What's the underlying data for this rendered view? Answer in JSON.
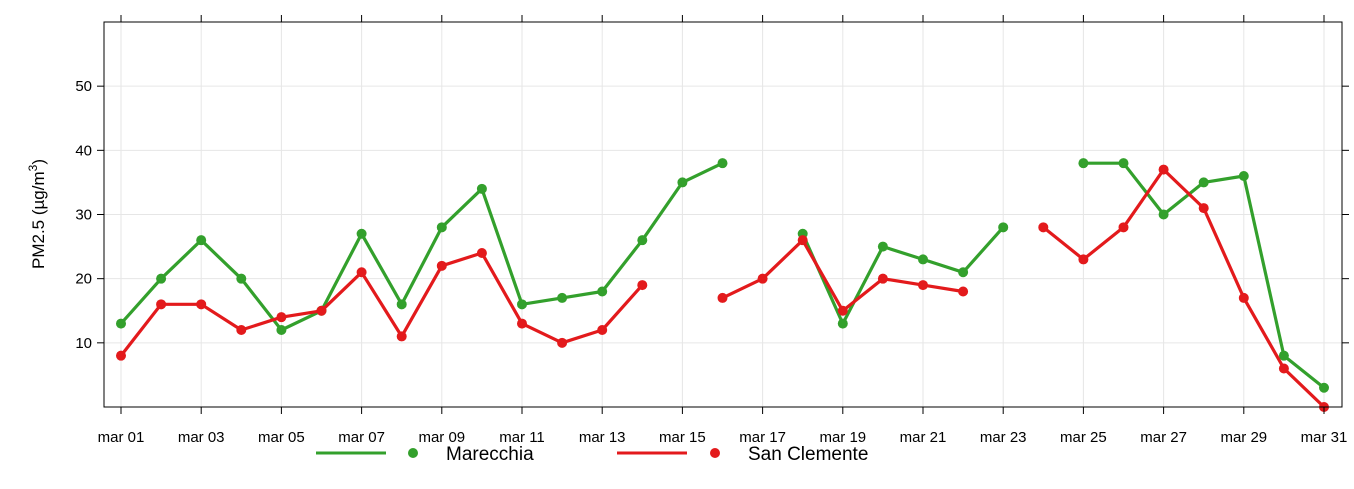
{
  "chart_data": {
    "type": "line",
    "title": "",
    "xlabel": "",
    "ylabel": {
      "text": "PM2.5 (µg/m",
      "superscript": "3",
      "suffix": ")"
    },
    "x_dates": [
      "mar 01",
      "mar 02",
      "mar 03",
      "mar 04",
      "mar 05",
      "mar 06",
      "mar 07",
      "mar 08",
      "mar 09",
      "mar 10",
      "mar 11",
      "mar 12",
      "mar 13",
      "mar 14",
      "mar 15",
      "mar 16",
      "mar 17",
      "mar 18",
      "mar 19",
      "mar 20",
      "mar 21",
      "mar 22",
      "mar 23",
      "mar 24",
      "mar 25",
      "mar 26",
      "mar 27",
      "mar 28",
      "mar 29",
      "mar 30",
      "mar 31"
    ],
    "x_tick_labels": [
      "mar 01",
      "mar 03",
      "mar 05",
      "mar 07",
      "mar 09",
      "mar 11",
      "mar 13",
      "mar 15",
      "mar 17",
      "mar 19",
      "mar 21",
      "mar 23",
      "mar 25",
      "mar 27",
      "mar 29",
      "mar 31"
    ],
    "y_ticks": [
      10,
      20,
      30,
      40,
      50
    ],
    "ylim": [
      0,
      60
    ],
    "grid": true,
    "legend_position": "bottom",
    "series": [
      {
        "name": "Marecchia",
        "color": "#33a02c",
        "values": [
          13,
          20,
          26,
          20,
          12,
          15,
          27,
          16,
          28,
          34,
          16,
          17,
          18,
          26,
          35,
          38,
          null,
          27,
          13,
          25,
          23,
          21,
          28,
          null,
          38,
          38,
          30,
          35,
          36,
          8,
          3
        ]
      },
      {
        "name": "San Clemente",
        "color": "#e31a1c",
        "values": [
          8,
          16,
          16,
          12,
          14,
          15,
          21,
          11,
          22,
          24,
          13,
          10,
          12,
          19,
          null,
          17,
          20,
          26,
          15,
          20,
          19,
          18,
          null,
          28,
          23,
          28,
          37,
          31,
          17,
          6,
          0
        ]
      }
    ]
  }
}
